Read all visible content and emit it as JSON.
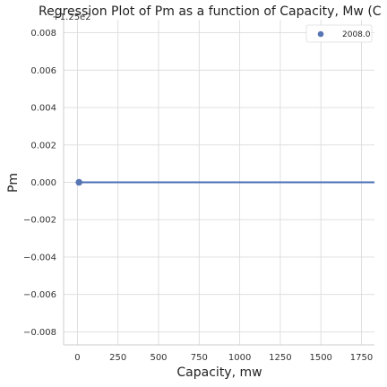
{
  "chart_data": {
    "type": "scatter",
    "title": "Regression Plot of Pm as a function of Capacity, Mw (Cambodia)",
    "xlabel": "Capacity, mw",
    "ylabel": "Pm",
    "y_offset_label": "+1.25e2",
    "xlim": [
      -85,
      1830
    ],
    "ylim": [
      -0.0087,
      0.0087
    ],
    "x_ticks": [
      0,
      250,
      500,
      750,
      1000,
      1250,
      1500,
      1750
    ],
    "x_tick_labels": [
      "0",
      "250",
      "500",
      "750",
      "1000",
      "1250",
      "1500",
      "1750"
    ],
    "y_ticks": [
      -0.008,
      -0.006,
      -0.004,
      -0.002,
      0.0,
      0.002,
      0.004,
      0.006,
      0.008
    ],
    "y_tick_labels": [
      "−0.008",
      "−0.006",
      "−0.004",
      "−0.002",
      "0.000",
      "0.002",
      "0.004",
      "0.006",
      "0.008"
    ],
    "grid": true,
    "legend_position": "top-right",
    "series": [
      {
        "name": "2008.0",
        "color": "#5875b4",
        "points": [
          {
            "x": 10,
            "y": 0.0
          }
        ]
      }
    ],
    "regression_line": {
      "color": "#4a6fb5",
      "x": [
        10,
        1830
      ],
      "y": [
        0.0,
        0.0
      ]
    }
  }
}
